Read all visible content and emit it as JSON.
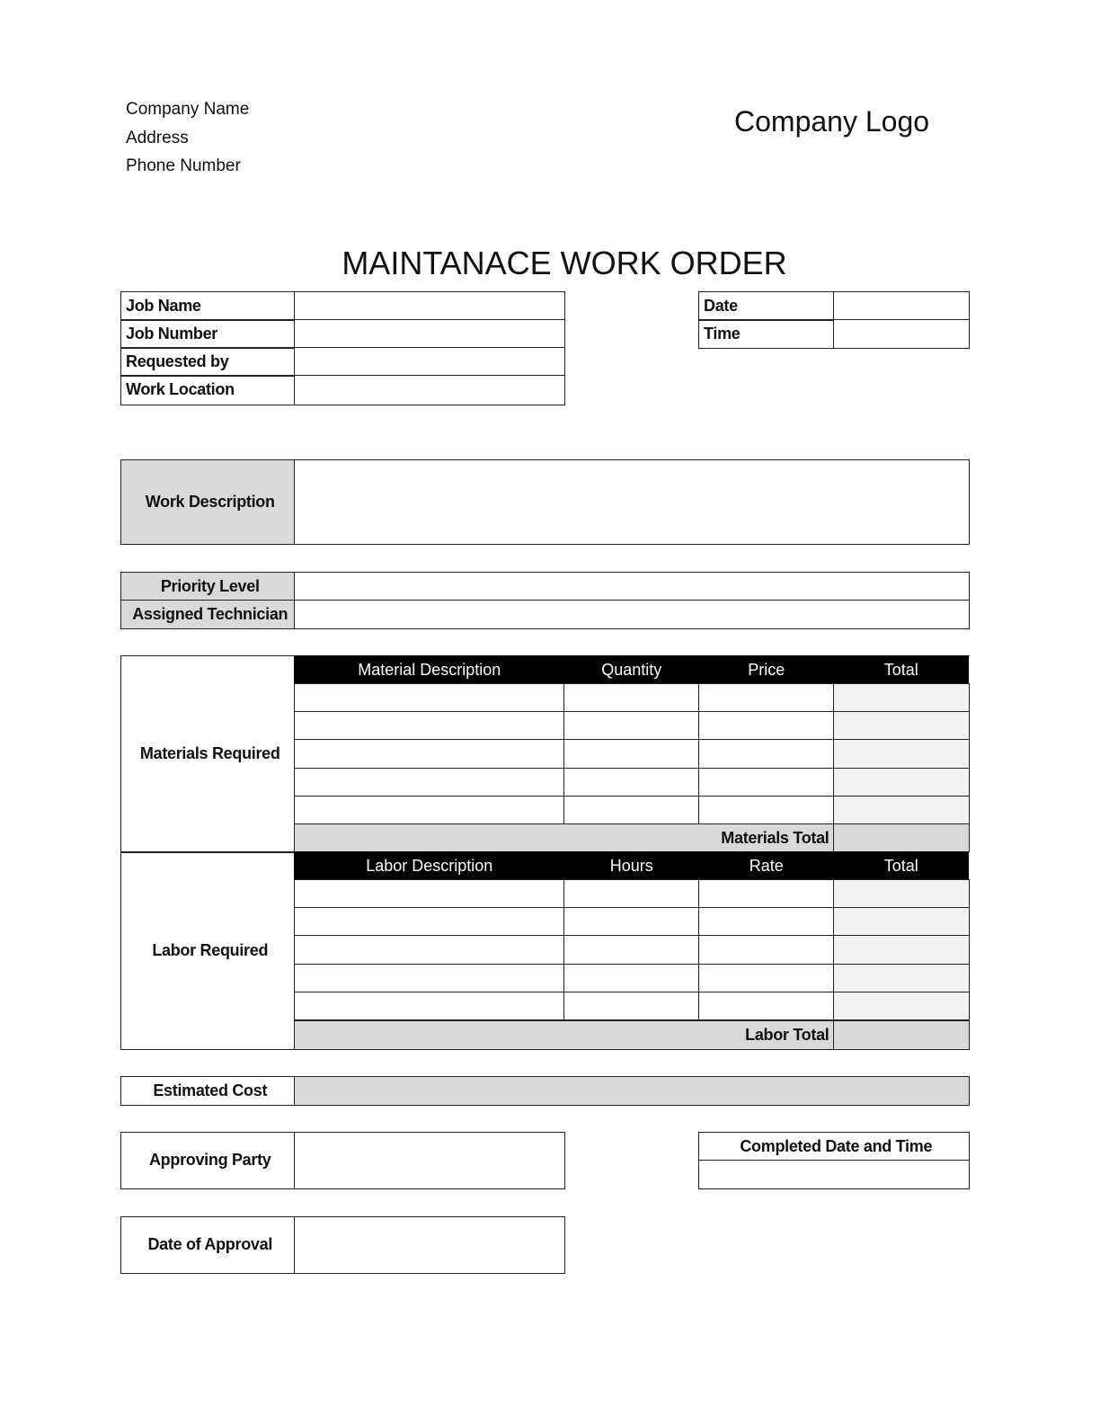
{
  "header": {
    "company_name": "Company Name",
    "address": "Address",
    "phone": "Phone Number",
    "logo": "Company Logo",
    "title": "MAINTANACE WORK ORDER"
  },
  "job_info": {
    "job_name": "Job Name",
    "job_number": "Job Number",
    "requested_by": "Requested by",
    "work_location": "Work Location",
    "date": "Date",
    "time": "Time"
  },
  "work_description": "Work Description",
  "priority_level": "Priority Level",
  "assigned_technician": "Assigned Technician",
  "materials": {
    "section_label": "Materials Required",
    "columns": [
      "Material Description",
      "Quantity",
      "Price",
      "Total"
    ],
    "total_label": "Materials Total"
  },
  "labor": {
    "section_label": "Labor Required",
    "columns": [
      "Labor Description",
      "Hours",
      "Rate",
      "Total"
    ],
    "total_label": "Labor Total"
  },
  "estimated_cost": "Estimated Cost",
  "approving_party": "Approving Party",
  "completed_date_time": "Completed Date and Time",
  "date_of_approval": "Date of Approval"
}
